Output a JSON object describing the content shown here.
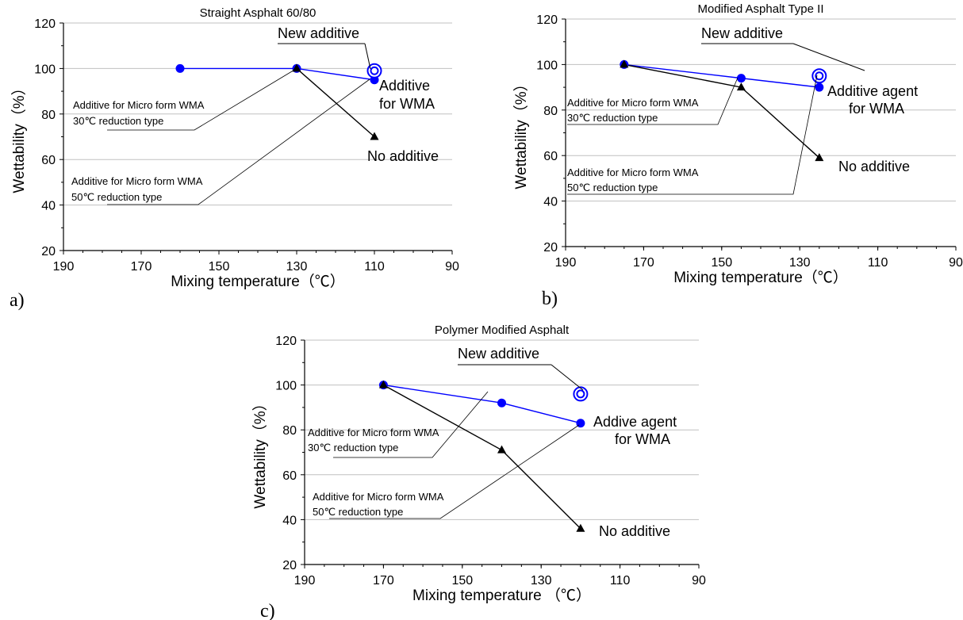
{
  "colors": {
    "blue_series": "#0000ff",
    "black_series": "#000000",
    "grid": "#c0c0c0",
    "background": "#ffffff"
  },
  "chart_data": [
    {
      "panel": "a)",
      "type": "line",
      "title": "Straight Asphalt 60/80",
      "xlabel": "Mixing temperature（℃）",
      "ylabel": "Wettability（%）",
      "xlim": [
        190,
        90
      ],
      "ylim": [
        20,
        120
      ],
      "x_reversed": true,
      "xticks": [
        190,
        170,
        150,
        130,
        110,
        90
      ],
      "yticks": [
        20,
        40,
        60,
        80,
        100,
        120
      ],
      "grid": "horizontal",
      "series": [
        {
          "marker": "circle",
          "color": "#0000ff",
          "points": [
            [
              160,
              100
            ],
            [
              130,
              100
            ],
            [
              110,
              95
            ]
          ]
        },
        {
          "marker": "triangle",
          "color": "#000000",
          "points": [
            [
              130,
              100
            ],
            [
              110,
              70
            ]
          ]
        },
        {
          "marker": "double-circle",
          "color": "#0000ff",
          "points": [
            [
              110,
              99
            ]
          ]
        }
      ],
      "annotations": [
        {
          "text": "New additive"
        },
        {
          "text": "Additive\nfor WMA"
        },
        {
          "text": "No additive"
        },
        {
          "text": "Additive for Micro form WMA\n30℃ reduction type"
        },
        {
          "text": "Additive for Micro form WMA\n50℃ reduction type"
        }
      ]
    },
    {
      "panel": "b)",
      "type": "line",
      "title": "Modified Asphalt Type II",
      "xlabel": "Mixing temperature（℃）",
      "ylabel": "Wettability（%）",
      "xlim": [
        190,
        90
      ],
      "ylim": [
        20,
        120
      ],
      "x_reversed": true,
      "xticks": [
        190,
        170,
        150,
        130,
        110,
        90
      ],
      "yticks": [
        20,
        40,
        60,
        80,
        100,
        120
      ],
      "grid": "horizontal",
      "series": [
        {
          "marker": "circle",
          "color": "#0000ff",
          "points": [
            [
              175,
              100
            ],
            [
              145,
              94
            ],
            [
              125,
              90
            ]
          ]
        },
        {
          "marker": "triangle",
          "color": "#000000",
          "points": [
            [
              175,
              100
            ],
            [
              145,
              90
            ],
            [
              125,
              59
            ]
          ]
        },
        {
          "marker": "double-circle",
          "color": "#0000ff",
          "points": [
            [
              125,
              95
            ]
          ]
        }
      ],
      "annotations": [
        {
          "text": "New additive"
        },
        {
          "text": "Additive agent\nfor WMA"
        },
        {
          "text": "No additive"
        },
        {
          "text": "Additive for Micro form WMA\n30℃ reduction type"
        },
        {
          "text": "Additive for Micro form WMA\n50℃ reduction type"
        }
      ]
    },
    {
      "panel": "c)",
      "type": "line",
      "title": "Polymer Modified Asphalt",
      "xlabel": "Mixing temperature （℃）",
      "ylabel": "Wettability（%）",
      "xlim": [
        190,
        90
      ],
      "ylim": [
        20,
        120
      ],
      "x_reversed": true,
      "xticks": [
        190,
        170,
        150,
        130,
        110,
        90
      ],
      "yticks": [
        20,
        40,
        60,
        80,
        100,
        120
      ],
      "grid": "horizontal",
      "series": [
        {
          "marker": "circle",
          "color": "#0000ff",
          "points": [
            [
              170,
              100
            ],
            [
              140,
              92
            ],
            [
              120,
              83
            ]
          ]
        },
        {
          "marker": "triangle",
          "color": "#000000",
          "points": [
            [
              170,
              100
            ],
            [
              140,
              71
            ],
            [
              120,
              36
            ]
          ]
        },
        {
          "marker": "double-circle",
          "color": "#0000ff",
          "points": [
            [
              120,
              96
            ]
          ]
        }
      ],
      "annotations": [
        {
          "text": "New additive"
        },
        {
          "text": "Addive agent\nfor WMA"
        },
        {
          "text": "No additive"
        },
        {
          "text": "Additive for Micro form WMA\n30℃ reduction type"
        },
        {
          "text": "Additive for Micro form WMA\n50℃ reduction type"
        }
      ]
    }
  ]
}
